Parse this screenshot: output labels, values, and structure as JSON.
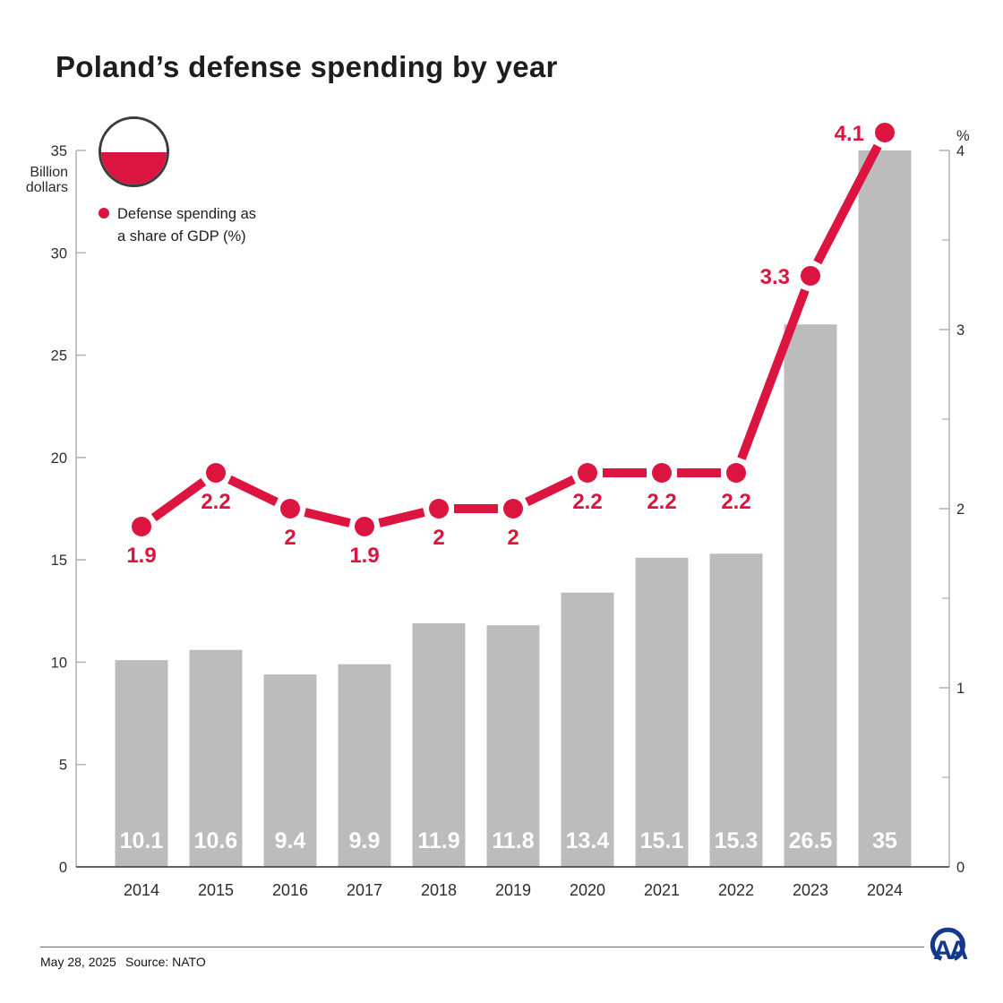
{
  "header": {
    "title": "Poland’s defense spending by year"
  },
  "flag": {
    "name": "poland-flag",
    "top_color": "#ffffff",
    "bottom_color": "#dc1540"
  },
  "legend": {
    "line1": "Defense spending as",
    "line2": "a share of GDP (%)",
    "marker_color": "#dc1540"
  },
  "colors": {
    "red": "#dc1540",
    "bar_gray": "#bcbcbc",
    "axis_gray": "#b5b5b5",
    "bottom_axis": "#4d4d4d",
    "text_dark": "#1d1d1f",
    "logo_blue": "#14388c"
  },
  "chart_data": {
    "type": "bar",
    "combo": true,
    "title": "Poland’s defense spending by year",
    "categories": [
      "2014",
      "2015",
      "2016",
      "2017",
      "2018",
      "2019",
      "2020",
      "2021",
      "2022",
      "2023",
      "2024"
    ],
    "series": [
      {
        "name": "Defense spending (billion dollars)",
        "type": "bar",
        "axis": "left",
        "color": "#bcbcbc",
        "values": [
          10.1,
          10.6,
          9.4,
          9.9,
          11.9,
          11.8,
          13.4,
          15.1,
          15.3,
          26.5,
          35
        ],
        "labels": [
          "10.1",
          "10.6",
          "9.4",
          "9.9",
          "11.9",
          "11.8",
          "13.4",
          "15.1",
          "15.3",
          "26.5",
          "35"
        ]
      },
      {
        "name": "Defense spending as a share of GDP (%)",
        "type": "line",
        "axis": "right",
        "color": "#dc1540",
        "values": [
          1.9,
          2.2,
          2,
          1.9,
          2,
          2,
          2.2,
          2.2,
          2.2,
          3.3,
          4.1
        ],
        "labels": [
          "1.9",
          "2.2",
          "2",
          "1.9",
          "2",
          "2",
          "2.2",
          "2.2",
          "2.2",
          "3.3",
          "4.1"
        ]
      }
    ],
    "left_axis": {
      "label": "Billion dollars",
      "unit_lines": [
        "Billion",
        "dollars"
      ],
      "min": 0,
      "max": 35,
      "ticks": [
        0,
        5,
        10,
        15,
        20,
        25,
        30,
        35
      ]
    },
    "right_axis": {
      "label": "%",
      "min": 0,
      "max": 4,
      "ticks": [
        0,
        1,
        2,
        3,
        4
      ],
      "minor_ticks": [
        0.5,
        1.5,
        2.5,
        3.5
      ]
    },
    "grid": false,
    "legend_position": "top-left"
  },
  "footer": {
    "date": "May 28, 2025",
    "source": "Source: NATO",
    "logo_text": "AA"
  }
}
